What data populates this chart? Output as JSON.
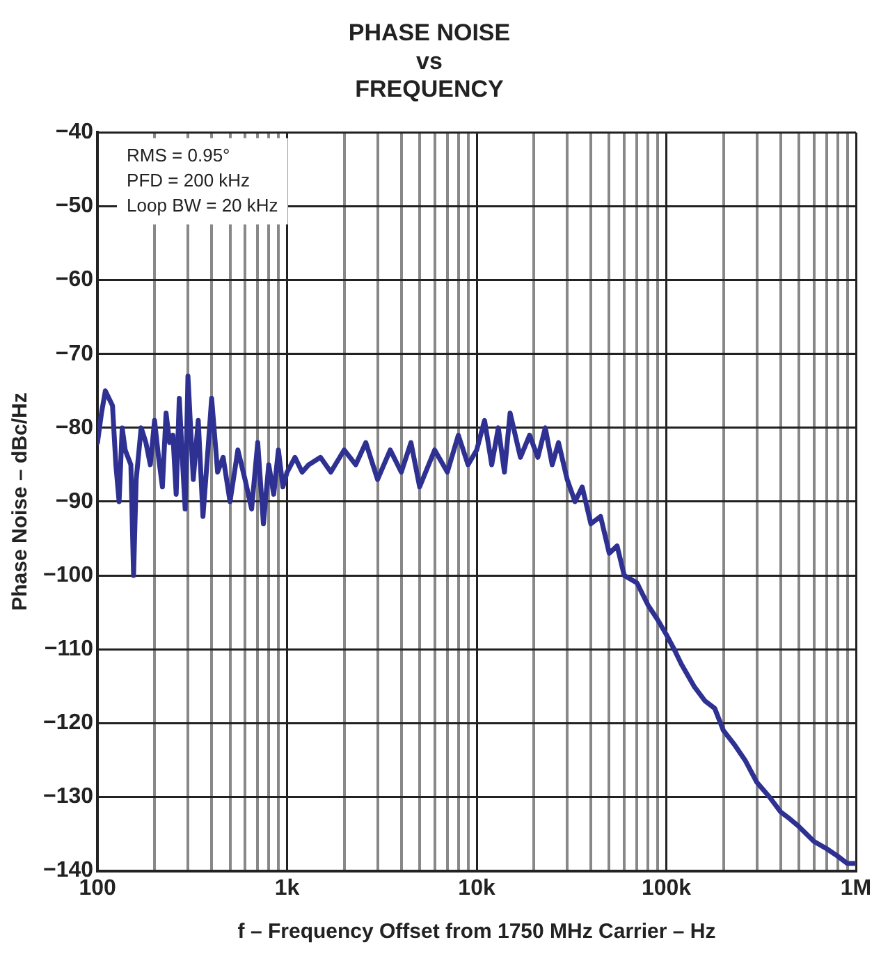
{
  "chart_data": {
    "type": "line",
    "title": "PHASE NOISE\nvs\nFREQUENCY",
    "xlabel": "f – Frequency Offset from 1750 MHz Carrier – Hz",
    "ylabel": "Phase Noise – dBc/Hz",
    "log": "x",
    "grid": true,
    "legend": false,
    "marker": "none",
    "line_style": "solid",
    "xlim": [
      100,
      1000000
    ],
    "ylim": [
      -140,
      -40
    ],
    "xticks": [
      {
        "value": 100,
        "label": "100"
      },
      {
        "value": 200,
        "label": null
      },
      {
        "value": 300,
        "label": null
      },
      {
        "value": 400,
        "label": null
      },
      {
        "value": 500,
        "label": null
      },
      {
        "value": 600,
        "label": null
      },
      {
        "value": 700,
        "label": null
      },
      {
        "value": 800,
        "label": null
      },
      {
        "value": 900,
        "label": null
      },
      {
        "value": 1000,
        "label": "1k"
      },
      {
        "value": 2000,
        "label": null
      },
      {
        "value": 3000,
        "label": null
      },
      {
        "value": 4000,
        "label": null
      },
      {
        "value": 5000,
        "label": null
      },
      {
        "value": 6000,
        "label": null
      },
      {
        "value": 7000,
        "label": null
      },
      {
        "value": 8000,
        "label": null
      },
      {
        "value": 9000,
        "label": null
      },
      {
        "value": 10000,
        "label": "10k"
      },
      {
        "value": 20000,
        "label": null
      },
      {
        "value": 30000,
        "label": null
      },
      {
        "value": 40000,
        "label": null
      },
      {
        "value": 50000,
        "label": null
      },
      {
        "value": 60000,
        "label": null
      },
      {
        "value": 70000,
        "label": null
      },
      {
        "value": 80000,
        "label": null
      },
      {
        "value": 90000,
        "label": null
      },
      {
        "value": 100000,
        "label": "100k"
      },
      {
        "value": 200000,
        "label": null
      },
      {
        "value": 300000,
        "label": null
      },
      {
        "value": 400000,
        "label": null
      },
      {
        "value": 500000,
        "label": null
      },
      {
        "value": 600000,
        "label": null
      },
      {
        "value": 700000,
        "label": null
      },
      {
        "value": 800000,
        "label": null
      },
      {
        "value": 900000,
        "label": null
      },
      {
        "value": 1000000,
        "label": "1M"
      }
    ],
    "yticks": [
      -40,
      -50,
      -60,
      -70,
      -80,
      -90,
      -100,
      -110,
      -120,
      -130,
      -140
    ],
    "annotations": [
      "RMS = 0.95°",
      "PFD = 200 kHz",
      "Loop BW = 20 kHz"
    ],
    "series": [
      {
        "color": "#2e3192",
        "x": [
          100,
          105,
          110,
          120,
          125,
          130,
          135,
          140,
          150,
          155,
          160,
          170,
          180,
          190,
          200,
          210,
          220,
          230,
          240,
          250,
          260,
          270,
          280,
          290,
          300,
          320,
          340,
          360,
          380,
          400,
          430,
          460,
          500,
          550,
          600,
          650,
          700,
          750,
          800,
          850,
          900,
          950,
          1000,
          1100,
          1200,
          1300,
          1500,
          1700,
          2000,
          2300,
          2600,
          3000,
          3500,
          4000,
          4500,
          5000,
          6000,
          7000,
          8000,
          9000,
          10000,
          11000,
          12000,
          13000,
          14000,
          15000,
          17000,
          19000,
          21000,
          23000,
          25000,
          27000,
          30000,
          33000,
          36000,
          40000,
          45000,
          50000,
          55000,
          60000,
          70000,
          80000,
          90000,
          100000,
          110000,
          120000,
          140000,
          160000,
          180000,
          200000,
          230000,
          260000,
          300000,
          350000,
          400000,
          450000,
          500000,
          600000,
          700000,
          800000,
          900000,
          1000000
        ],
        "values": [
          -82,
          -78,
          -75,
          -77,
          -85,
          -90,
          -80,
          -83,
          -85,
          -100,
          -87,
          -80,
          -82,
          -85,
          -79,
          -84,
          -88,
          -78,
          -82,
          -81,
          -89,
          -76,
          -84,
          -91,
          -73,
          -87,
          -79,
          -92,
          -84,
          -76,
          -86,
          -84,
          -90,
          -83,
          -87,
          -91,
          -82,
          -93,
          -85,
          -89,
          -83,
          -88,
          -86,
          -84,
          -86,
          -85,
          -84,
          -86,
          -83,
          -85,
          -82,
          -87,
          -83,
          -86,
          -82,
          -88,
          -83,
          -86,
          -81,
          -85,
          -83,
          -79,
          -85,
          -80,
          -86,
          -78,
          -84,
          -81,
          -84,
          -80,
          -85,
          -82,
          -87,
          -90,
          -88,
          -93,
          -92,
          -97,
          -96,
          -100,
          -101,
          -104,
          -106,
          -108,
          -110,
          -112,
          -115,
          -117,
          -118,
          -121,
          -123,
          -125,
          -128,
          -130,
          -132,
          -133,
          -134,
          -136,
          -137,
          -138,
          -139,
          -139
        ]
      }
    ]
  }
}
